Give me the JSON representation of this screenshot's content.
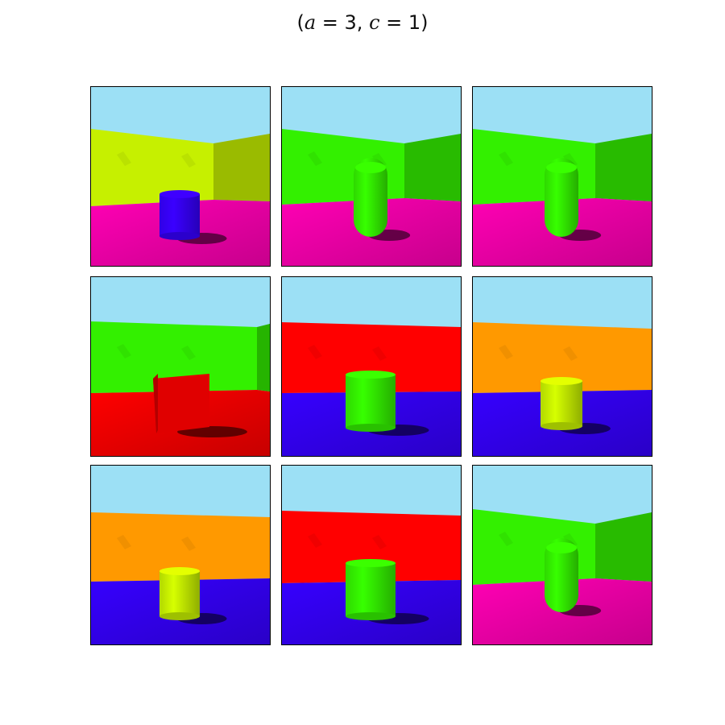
{
  "figure": {
    "title_open": "(",
    "title_a_var": "a",
    "title_a_rest": " = 3, ",
    "title_c_var": "c",
    "title_c_rest": " = 1)"
  },
  "colors": {
    "sky": "#9ce0f5",
    "yellow": "#c6f000",
    "green": "#33f000",
    "red": "#ff0000",
    "orange": "#ff9900",
    "magenta": "#ff00b4",
    "blue": "#3600ff"
  },
  "panels": [
    {
      "wall": "yellow",
      "floor": "magenta",
      "object": "cylinder",
      "object_color": "blue",
      "corner": "right"
    },
    {
      "wall": "green",
      "floor": "magenta",
      "object": "capsule",
      "object_color": "green",
      "corner": "right"
    },
    {
      "wall": "green",
      "floor": "magenta",
      "object": "capsule",
      "object_color": "green",
      "corner": "right"
    },
    {
      "wall": "green",
      "floor": "red",
      "object": "cube",
      "object_color": "red",
      "corner": "right-edge"
    },
    {
      "wall": "red",
      "floor": "blue",
      "object": "cylinder",
      "object_color": "green",
      "corner": "none"
    },
    {
      "wall": "orange",
      "floor": "blue",
      "object": "cylinder",
      "object_color": "yellow",
      "corner": "none"
    },
    {
      "wall": "orange",
      "floor": "blue",
      "object": "cylinder",
      "object_color": "yellow",
      "corner": "none"
    },
    {
      "wall": "red",
      "floor": "blue",
      "object": "cylinder",
      "object_color": "green",
      "corner": "none"
    },
    {
      "wall": "green",
      "floor": "magenta",
      "object": "capsule",
      "object_color": "green",
      "corner": "right"
    }
  ]
}
